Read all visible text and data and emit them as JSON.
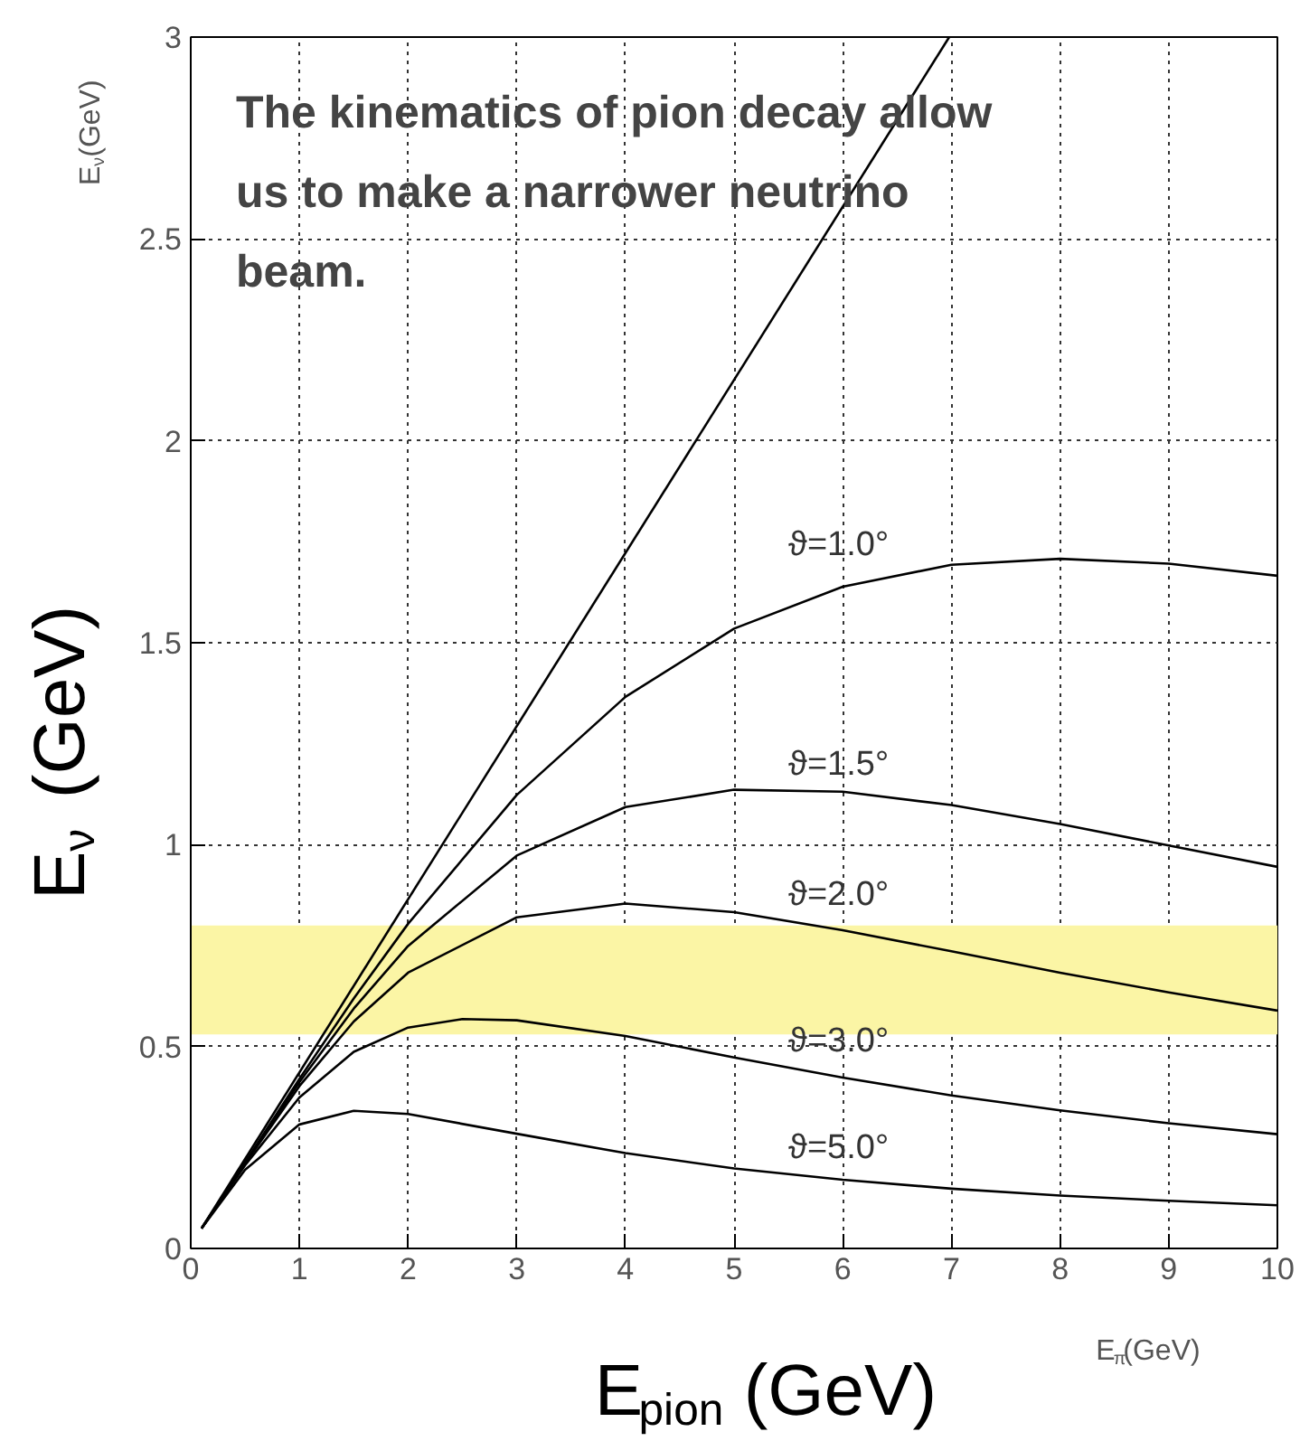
{
  "chart_data": {
    "type": "line",
    "title": "The kinematics of pion decay allow us to make a narrower neutrino beam.",
    "xlabel": "E$_{pion}$ (GeV)",
    "ylabel": "E$_{ν}$ (GeV)",
    "xlim": [
      0,
      10
    ],
    "ylim": [
      0,
      3
    ],
    "xticks": [
      0,
      1,
      2,
      3,
      4,
      5,
      6,
      7,
      8,
      9,
      10
    ],
    "yticks": [
      0,
      0.5,
      1,
      1.5,
      2,
      2.5,
      3
    ],
    "grid": true,
    "line_style": "solid",
    "marker": "none",
    "legend": false,
    "series": [
      {
        "color": "#000000",
        "x": [
          0.1,
          6.98
        ],
        "values": [
          0.05,
          3.0
        ]
      },
      {
        "name": "ϑ=1.0°",
        "color": "#000000",
        "x": [
          0.1,
          0.5,
          1,
          1.5,
          2,
          3,
          4,
          5,
          6,
          7,
          8,
          9,
          10
        ],
        "values": [
          0.05,
          0.213,
          0.42,
          0.619,
          0.804,
          1.123,
          1.366,
          1.535,
          1.639,
          1.693,
          1.708,
          1.696,
          1.666
        ]
      },
      {
        "name": "ϑ=1.5°",
        "color": "#000000",
        "x": [
          0.1,
          0.5,
          1,
          1.5,
          2,
          3,
          4,
          5,
          6,
          7,
          8,
          9,
          10
        ],
        "values": [
          0.05,
          0.212,
          0.412,
          0.594,
          0.749,
          0.973,
          1.093,
          1.136,
          1.131,
          1.098,
          1.051,
          0.998,
          0.945
        ]
      },
      {
        "name": "ϑ=2.0°",
        "color": "#000000",
        "x": [
          0.1,
          0.5,
          1,
          1.5,
          2,
          3,
          4,
          5,
          6,
          7,
          8,
          9,
          10
        ],
        "values": [
          0.05,
          0.21,
          0.402,
          0.562,
          0.683,
          0.82,
          0.854,
          0.833,
          0.788,
          0.736,
          0.683,
          0.634,
          0.589
        ]
      },
      {
        "name": "ϑ=3.0°",
        "color": "#000000",
        "x": [
          0.1,
          0.5,
          1,
          1.5,
          2,
          2.5,
          3,
          4,
          5,
          6,
          7,
          8,
          9,
          10
        ],
        "values": [
          0.05,
          0.206,
          0.374,
          0.487,
          0.547,
          0.568,
          0.565,
          0.526,
          0.473,
          0.423,
          0.379,
          0.342,
          0.31,
          0.283
        ]
      },
      {
        "name": "ϑ=5.0°",
        "color": "#000000",
        "x": [
          0.1,
          0.25,
          0.5,
          1,
          1.5,
          2,
          3,
          4,
          5,
          6,
          7,
          8,
          9,
          10
        ],
        "values": [
          0.05,
          0.104,
          0.195,
          0.307,
          0.341,
          0.333,
          0.284,
          0.236,
          0.198,
          0.17,
          0.148,
          0.131,
          0.118,
          0.107
        ]
      }
    ],
    "bands": [
      {
        "axis": "y",
        "from": 0.53,
        "to": 0.8,
        "color": "#fbf5a5"
      }
    ],
    "annotations": [
      "E$_{ν}$(GeV)",
      "E$_{π}$(GeV)"
    ]
  }
}
